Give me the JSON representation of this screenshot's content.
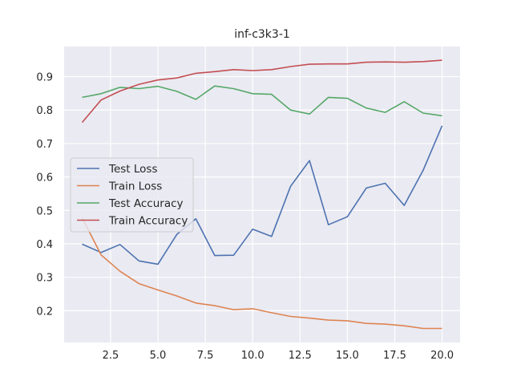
{
  "chart_data": {
    "type": "line",
    "title": "inf-c3k3-1",
    "xlabel": "",
    "ylabel": "",
    "xlim": [
      0.05,
      20.95
    ],
    "ylim": [
      0.105,
      0.99
    ],
    "xticks": [
      2.5,
      5.0,
      7.5,
      10.0,
      12.5,
      15.0,
      17.5,
      20.0
    ],
    "xtick_labels": [
      "2.5",
      "5.0",
      "7.5",
      "10.0",
      "12.5",
      "15.0",
      "17.5",
      "20.0"
    ],
    "yticks": [
      0.2,
      0.3,
      0.4,
      0.5,
      0.6,
      0.7,
      0.8,
      0.9
    ],
    "ytick_labels": [
      "0.2",
      "0.3",
      "0.4",
      "0.5",
      "0.6",
      "0.7",
      "0.8",
      "0.9"
    ],
    "grid": true,
    "legend_position": "center-left",
    "x": [
      1,
      2,
      3,
      4,
      5,
      6,
      7,
      8,
      9,
      10,
      11,
      12,
      13,
      14,
      15,
      16,
      17,
      18,
      19,
      20
    ],
    "series": [
      {
        "name": "Test Loss",
        "color": "#4c72b0",
        "values": [
          0.399,
          0.374,
          0.398,
          0.349,
          0.339,
          0.428,
          0.475,
          0.365,
          0.366,
          0.444,
          0.422,
          0.572,
          0.649,
          0.457,
          0.481,
          0.567,
          0.581,
          0.515,
          0.62,
          0.753
        ]
      },
      {
        "name": "Train Loss",
        "color": "#dd8452",
        "values": [
          0.478,
          0.367,
          0.318,
          0.281,
          0.262,
          0.244,
          0.223,
          0.215,
          0.203,
          0.206,
          0.194,
          0.183,
          0.178,
          0.172,
          0.17,
          0.162,
          0.16,
          0.155,
          0.147,
          0.147
        ]
      },
      {
        "name": "Test Accuracy",
        "color": "#55a868",
        "values": [
          0.838,
          0.849,
          0.868,
          0.864,
          0.871,
          0.856,
          0.832,
          0.872,
          0.864,
          0.849,
          0.847,
          0.8,
          0.788,
          0.838,
          0.835,
          0.806,
          0.793,
          0.825,
          0.791,
          0.783
        ]
      },
      {
        "name": "Train Accuracy",
        "color": "#c44e52",
        "values": [
          0.763,
          0.83,
          0.857,
          0.877,
          0.89,
          0.896,
          0.91,
          0.915,
          0.921,
          0.918,
          0.921,
          0.93,
          0.937,
          0.938,
          0.938,
          0.943,
          0.944,
          0.943,
          0.945,
          0.949
        ]
      }
    ]
  }
}
